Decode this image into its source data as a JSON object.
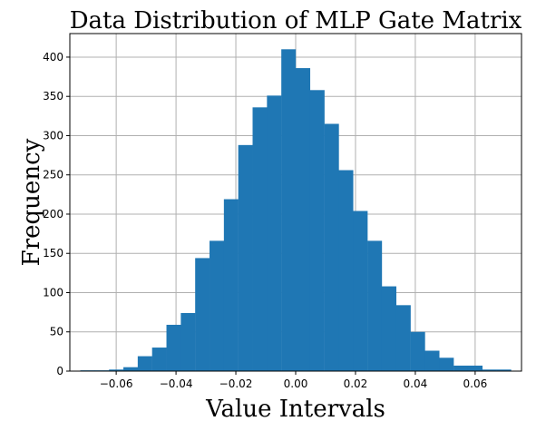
{
  "chart_data": {
    "type": "bar",
    "title": "Data Distribution of MLP Gate Matrix",
    "xlabel": "Value Intervals",
    "ylabel": "Frequency",
    "xlim": [
      -0.0755,
      0.0755
    ],
    "ylim": [
      0,
      430
    ],
    "grid": true,
    "color": "#1f77b4",
    "xticks": [
      -0.06,
      -0.04,
      -0.02,
      0.0,
      0.02,
      0.04,
      0.06
    ],
    "xtick_labels": [
      "−0.06",
      "−0.04",
      "−0.02",
      "0.00",
      "0.02",
      "0.04",
      "0.06"
    ],
    "yticks": [
      0,
      50,
      100,
      150,
      200,
      250,
      300,
      350,
      400
    ],
    "ytick_labels": [
      "0",
      "50",
      "100",
      "150",
      "200",
      "250",
      "300",
      "350",
      "400"
    ],
    "bin_edges": [
      -0.072,
      -0.0672,
      -0.0624,
      -0.0576,
      -0.0528,
      -0.048,
      -0.0432,
      -0.0384,
      -0.0336,
      -0.0288,
      -0.024,
      -0.0192,
      -0.0144,
      -0.0096,
      -0.0048,
      0.0,
      0.0048,
      0.0096,
      0.0144,
      0.0192,
      0.024,
      0.0288,
      0.0336,
      0.0384,
      0.0432,
      0.048,
      0.0528,
      0.0576,
      0.0624,
      0.0672,
      0.072
    ],
    "values": [
      1,
      1,
      2,
      5,
      19,
      30,
      59,
      74,
      144,
      166,
      219,
      288,
      336,
      351,
      410,
      386,
      358,
      315,
      256,
      204,
      166,
      108,
      84,
      50,
      26,
      17,
      7,
      7,
      2,
      2
    ]
  }
}
